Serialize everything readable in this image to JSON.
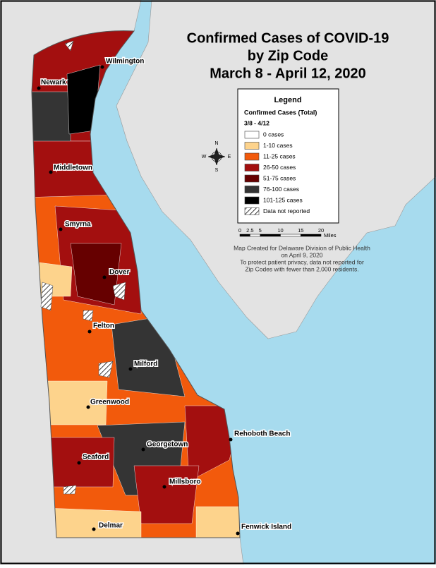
{
  "title": [
    "Confirmed Cases of COVID-19",
    "by Zip Code",
    "March 8 - April 12, 2020"
  ],
  "legend": {
    "title": "Legend",
    "subtitle": "Confirmed Cases (Total)",
    "period": "3/8 - 4/12",
    "items": [
      {
        "label": "0 cases",
        "color": "#ffffff"
      },
      {
        "label": "1-10 cases",
        "color": "#fdd38c"
      },
      {
        "label": "11-25 cases",
        "color": "#f25a0c"
      },
      {
        "label": "26-50 cases",
        "color": "#a30f0f"
      },
      {
        "label": "51-75 cases",
        "color": "#660000"
      },
      {
        "label": "76-100 cases",
        "color": "#343434"
      },
      {
        "label": "101-125 cases",
        "color": "#000000"
      },
      {
        "label": "Data not reported",
        "pattern": "hatch"
      }
    ]
  },
  "scale": {
    "ticks": [
      0,
      2.5,
      5,
      10,
      15,
      20
    ],
    "unit": "Miles"
  },
  "note": [
    "Map Created for Delaware Division of Public Health",
    "on April 9, 2020",
    "To protect patient privacy, data not reported for",
    "Zip Codes with fewer than 2,000 residents."
  ],
  "compass": {
    "n": "N",
    "e": "E",
    "s": "S",
    "w": "W"
  },
  "cities": [
    "Wilmington",
    "Newark",
    "Middletown",
    "Smyrna",
    "Dover",
    "Felton",
    "Milford",
    "Greenwood",
    "Rehoboth Beach",
    "Georgetown",
    "Seaford",
    "Millsboro",
    "Delmar",
    "Fenwick Island"
  ]
}
